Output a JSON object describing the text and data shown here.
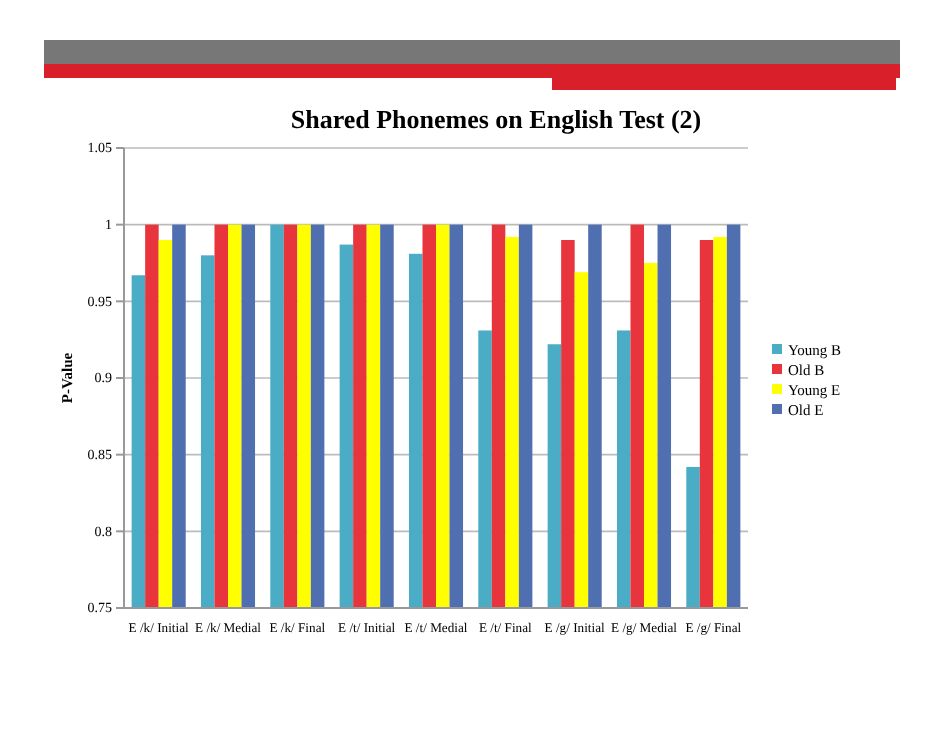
{
  "chart_data": {
    "type": "bar",
    "title": "Shared Phonemes on English Test (2)",
    "ylabel": "P-Value",
    "categories": [
      "E /k/ Initial",
      "E /k/ Medial",
      "E /k/ Final",
      "E /t/ Initial",
      "E /t/ Medial",
      "E /t/ Final",
      "E /g/ Initial",
      "E /g/ Medial",
      "E /g/ Final"
    ],
    "series": [
      {
        "name": "Young B",
        "color": "#4bacc6",
        "values": [
          0.967,
          0.98,
          1,
          0.987,
          0.981,
          0.931,
          0.922,
          0.931,
          0.842
        ]
      },
      {
        "name": "Old B",
        "color": "#e8343c",
        "values": [
          1,
          1,
          1,
          1,
          1,
          1,
          0.99,
          1,
          0.99
        ]
      },
      {
        "name": "Young E",
        "color": "#ffff00",
        "values": [
          0.99,
          1,
          1,
          1,
          1,
          0.992,
          0.969,
          0.975,
          0.992
        ]
      },
      {
        "name": "Old E",
        "color": "#4f6fb0",
        "values": [
          1,
          1,
          1,
          1,
          1,
          1,
          1,
          1,
          1
        ]
      }
    ],
    "ylim": [
      0.75,
      1.05
    ],
    "yticks": [
      {
        "value": 0.75,
        "label": "0.75"
      },
      {
        "value": 0.8,
        "label": "0.8"
      },
      {
        "value": 0.85,
        "label": "0.85"
      },
      {
        "value": 0.9,
        "label": "0.9"
      },
      {
        "value": 0.95,
        "label": "0.95"
      },
      {
        "value": 1,
        "label": "1"
      },
      {
        "value": 1.05,
        "label": "1.05"
      }
    ],
    "grid": "y",
    "legend": "right"
  }
}
